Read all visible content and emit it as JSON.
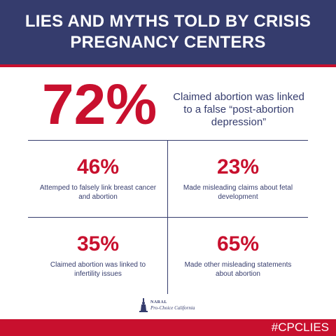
{
  "header": {
    "title_line1": "LIES AND MYTHS TOLD BY CRISIS",
    "title_line2": "PREGNANCY CENTERS"
  },
  "hero": {
    "value": "72%",
    "description": "Claimed abortion was linked to a false “post-abortion depression”"
  },
  "stats": [
    {
      "value": "46%",
      "description": "Attemped to falsely link breast cancer and abortion"
    },
    {
      "value": "23%",
      "description": "Made misleading claims about fetal development"
    },
    {
      "value": "35%",
      "description": "Claimed abortion was linked to infertility issues"
    },
    {
      "value": "65%",
      "description": "Made other misleading statements about abortion"
    }
  ],
  "logo": {
    "line1": "NARAL",
    "line2": "Pro-Choice California",
    "icon": "liberty-statue-icon"
  },
  "footer": {
    "hashtag": "#CPCLIES"
  },
  "colors": {
    "navy": "#353c6d",
    "red": "#c8102e"
  }
}
